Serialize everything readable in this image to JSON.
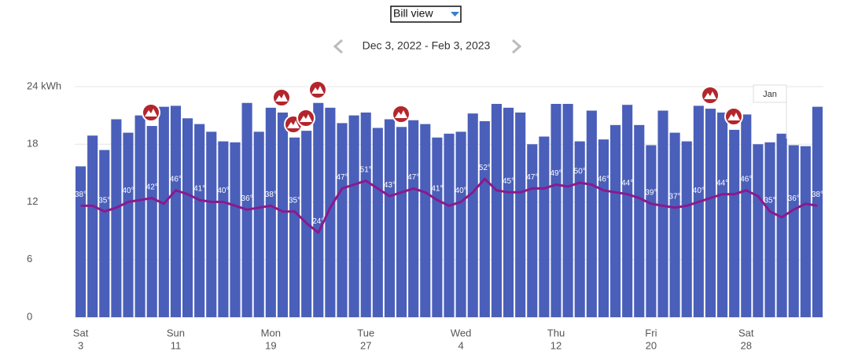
{
  "controls": {
    "view_select": "Bill view",
    "date_range": "Dec 3, 2022 - Feb 3, 2023"
  },
  "chart_data": {
    "type": "bar-line",
    "categories": [
      {
        "weekday": "Sat",
        "day": "3"
      },
      null,
      null,
      null,
      null,
      null,
      null,
      null,
      {
        "weekday": "Sun",
        "day": "11"
      },
      null,
      null,
      null,
      null,
      null,
      null,
      null,
      {
        "weekday": "Mon",
        "day": "19"
      },
      null,
      null,
      null,
      null,
      null,
      null,
      null,
      {
        "weekday": "Tue",
        "day": "27"
      },
      null,
      null,
      null,
      null,
      null,
      null,
      null,
      {
        "weekday": "Wed",
        "day": "4"
      },
      null,
      null,
      null,
      null,
      null,
      null,
      null,
      {
        "weekday": "Thu",
        "day": "12"
      },
      null,
      null,
      null,
      null,
      null,
      null,
      null,
      {
        "weekday": "Fri",
        "day": "20"
      },
      null,
      null,
      null,
      null,
      null,
      null,
      null,
      {
        "weekday": "Sat",
        "day": "28"
      },
      null,
      null,
      null,
      null,
      null,
      null
    ],
    "series": [
      {
        "color": "#4a5fba",
        "values": [
          15.7,
          18.9,
          17.4,
          20.6,
          19.2,
          21.0,
          19.9,
          21.9,
          22.0,
          20.7,
          20.1,
          19.3,
          18.3,
          18.2,
          22.3,
          19.3,
          21.8,
          21.3,
          18.7,
          19.4,
          22.3,
          21.8,
          20.2,
          21.0,
          21.3,
          19.7,
          20.6,
          19.8,
          20.5,
          20.1,
          18.7,
          19.1,
          19.3,
          21.2,
          20.4,
          22.2,
          21.8,
          21.3,
          18.0,
          18.8,
          22.2,
          22.2,
          18.3,
          21.5,
          18.5,
          20.0,
          22.1,
          20.0,
          17.9,
          21.5,
          19.2,
          18.3,
          22.0,
          21.7,
          21.3,
          19.5,
          21.1,
          18.0,
          18.2,
          19.1,
          17.9,
          17.8,
          21.9
        ]
      },
      {
        "color": "#8a1a8c",
        "axis": "y2",
        "values": [
          38,
          38,
          35,
          37,
          40,
          41,
          42,
          39,
          46,
          44,
          41,
          40,
          40,
          38,
          36,
          37,
          38,
          35,
          35,
          29,
          24,
          37,
          47,
          49,
          51,
          47,
          43,
          45,
          47,
          45,
          41,
          38,
          40,
          45,
          52,
          46,
          45,
          45,
          47,
          47,
          49,
          48,
          50,
          49,
          46,
          45,
          44,
          42,
          39,
          38,
          37,
          38,
          40,
          42,
          44,
          44,
          46,
          43,
          35,
          32,
          36,
          39,
          38
        ],
        "value_labels": [
          "38°",
          null,
          "35°",
          null,
          "40°",
          null,
          "42°",
          null,
          "46°",
          null,
          "41°",
          null,
          "40°",
          null,
          "36°",
          null,
          "38°",
          null,
          "35°",
          null,
          "24°",
          null,
          "47°",
          null,
          "51°",
          null,
          "43°",
          null,
          "47°",
          null,
          "41°",
          null,
          "40°",
          null,
          "52°",
          null,
          "45°",
          null,
          "47°",
          null,
          "49°",
          null,
          "50°",
          null,
          "46°",
          null,
          "44°",
          null,
          "39°",
          null,
          "37°",
          null,
          "40°",
          null,
          "44°",
          null,
          "46°",
          null,
          "35°",
          null,
          "36°",
          null,
          "38°"
        ]
      }
    ],
    "ylim": [
      0,
      24
    ],
    "yticks": [
      0,
      6,
      12,
      18,
      {
        "value": 24,
        "label": "24 kWh"
      }
    ],
    "y2lim": [
      -20,
      100
    ],
    "grid": true,
    "annotations": [
      "Jan"
    ]
  }
}
